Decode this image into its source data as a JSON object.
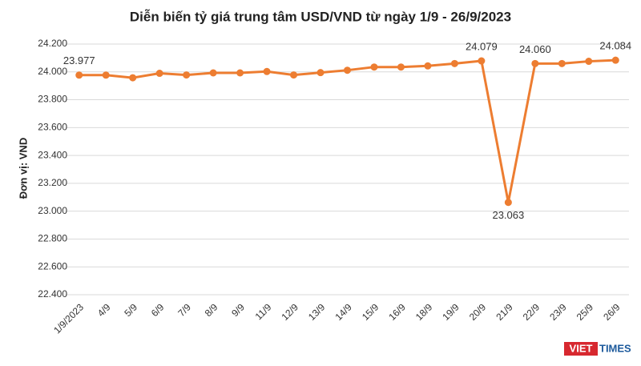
{
  "chart_data": {
    "type": "line",
    "title": "Diễn biến tỷ giá trung tâm USD/VND từ ngày 1/9 - 26/9/2023",
    "y_label": "Đơn vị: VND",
    "categories": [
      "1/9/2023",
      "4/9",
      "5/9",
      "6/9",
      "7/9",
      "8/9",
      "9/9",
      "11/9",
      "12/9",
      "13/9",
      "14/9",
      "15/9",
      "16/9",
      "18/9",
      "19/9",
      "20/9",
      "21/9",
      "22/9",
      "23/9",
      "25/9",
      "26/9"
    ],
    "series": [
      {
        "name": "USD/VND",
        "color": "#ed7d31",
        "values": [
          23977,
          23977,
          23958,
          23990,
          23978,
          23993,
          23993,
          24003,
          23978,
          23995,
          24012,
          24035,
          24035,
          24043,
          24060,
          24079,
          23063,
          24060,
          24060,
          24076,
          24084
        ],
        "value_labels": [
          "23.977",
          null,
          null,
          null,
          null,
          null,
          null,
          null,
          null,
          null,
          null,
          null,
          null,
          null,
          null,
          "24.079",
          "23.063",
          "24.060",
          null,
          null,
          "24.084"
        ]
      }
    ],
    "ylim": [
      22400,
      24200
    ],
    "yticks": [
      {
        "value": 22400,
        "label": "22.400"
      },
      {
        "value": 22600,
        "label": "22.600"
      },
      {
        "value": 22800,
        "label": "22.800"
      },
      {
        "value": 23000,
        "label": "23.000"
      },
      {
        "value": 23200,
        "label": "23.200"
      },
      {
        "value": 23400,
        "label": "23.400"
      },
      {
        "value": 23600,
        "label": "23.600"
      },
      {
        "value": 23800,
        "label": "23.800"
      },
      {
        "value": 24000,
        "label": "24.000"
      },
      {
        "value": 24200,
        "label": "24.200"
      }
    ],
    "grid": true,
    "logo": {
      "left": "VIET",
      "right": "TIMES"
    }
  }
}
